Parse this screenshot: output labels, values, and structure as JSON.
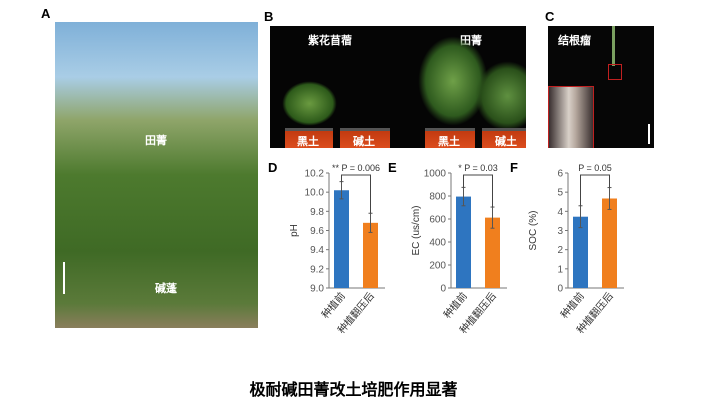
{
  "panels": {
    "A": "A",
    "B": "B",
    "C": "C",
    "D": "D",
    "E": "E",
    "F": "F"
  },
  "photoA": {
    "label_tianjing": "田菁",
    "label_jianpeng": "碱蓬"
  },
  "photoB": {
    "label_alfalfa": "紫花苜蓿",
    "label_tianjing": "田菁",
    "pots": [
      "黑土",
      "碱土",
      "黑土",
      "碱土"
    ]
  },
  "photoC": {
    "label": "结根瘤"
  },
  "caption": "极耐碱田菁改土培肥作用显著",
  "colors": {
    "before": "#2e75c0",
    "after": "#f07f1e"
  },
  "chart_data": [
    {
      "type": "bar",
      "panel": "D",
      "categories": [
        "种植前",
        "种植翻压后"
      ],
      "values": [
        10.02,
        9.68
      ],
      "errors": [
        0.09,
        0.1
      ],
      "ylabel": "pH",
      "ylim": [
        9.0,
        10.2
      ],
      "yticks": [
        "9.0",
        "9.2",
        "9.4",
        "9.6",
        "9.8",
        "10.0",
        "10.2"
      ],
      "annotation": "** P = 0.006"
    },
    {
      "type": "bar",
      "panel": "E",
      "categories": [
        "种植前",
        "种植翻压后"
      ],
      "values": [
        795,
        612
      ],
      "errors": [
        80,
        92
      ],
      "ylabel": "EC (us/cm)",
      "ylim": [
        0,
        1000
      ],
      "yticks": [
        "0",
        "200",
        "400",
        "600",
        "800",
        "1000"
      ],
      "annotation": "* P = 0.03"
    },
    {
      "type": "bar",
      "panel": "F",
      "categories": [
        "种植前",
        "种植翻压后"
      ],
      "values": [
        3.72,
        4.67
      ],
      "errors": [
        0.57,
        0.57
      ],
      "ylabel": "SOC (%)",
      "ylim": [
        0,
        6
      ],
      "yticks": [
        "0",
        "1",
        "2",
        "3",
        "4",
        "5",
        "6"
      ],
      "annotation": "P = 0.05"
    }
  ]
}
